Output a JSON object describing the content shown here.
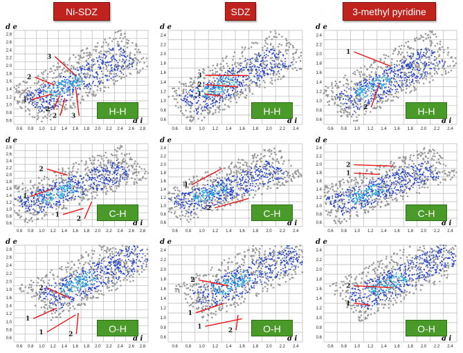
{
  "headers": [
    {
      "label": "Ni-SDZ"
    },
    {
      "label": "SDZ"
    },
    {
      "label": "3-methyl pyridine"
    }
  ],
  "axis_label": "d",
  "axis_label_y_suffix": "e",
  "axis_label_x_suffix": "i",
  "ticks": {
    "col0": {
      "y": [
        "2.8",
        "2.6",
        "2.4",
        "2.2",
        "2.0",
        "1.8",
        "1.6",
        "1.4",
        "1.2",
        "1.0",
        "0.8",
        "0.6"
      ],
      "x": [
        "0.6",
        "0.8",
        "1.0",
        "1.2",
        "1.4",
        "1.6",
        "1.8",
        "2.0",
        "2.2",
        "2.4",
        "2.6",
        "2.8"
      ]
    },
    "col1": {
      "y": [
        "2.4",
        "2.2",
        "2.0",
        "1.8",
        "1.6",
        "1.4",
        "1.2",
        "1.0",
        "0.8",
        "0.6"
      ],
      "x": [
        "0.6",
        "0.8",
        "1.0",
        "1.2",
        "1.4",
        "1.6",
        "1.8",
        "2.0",
        "2.2",
        "2.4"
      ]
    },
    "col2": {
      "y": [
        "2.4",
        "2.2",
        "2.0",
        "1.8",
        "1.6",
        "1.4",
        "1.2",
        "1.0",
        "0.8",
        "0.6"
      ],
      "x": [
        "0.6",
        "0.8",
        "1.0",
        "1.2",
        "1.4",
        "1.6",
        "1.8",
        "2.0",
        "2.2",
        "2.4"
      ]
    }
  },
  "panels": [
    {
      "row": 0,
      "col": 0,
      "contact": "H-H",
      "markers": [
        "3",
        "2",
        "1",
        "2",
        "2",
        "3"
      ]
    },
    {
      "row": 0,
      "col": 1,
      "contact": "H-H",
      "markers": [
        "3",
        "2",
        "1"
      ]
    },
    {
      "row": 0,
      "col": 2,
      "contact": "H-H",
      "markers": [
        "1",
        "2"
      ]
    },
    {
      "row": 1,
      "col": 0,
      "contact": "C-H",
      "markers": [
        "2",
        "1",
        "1",
        "2"
      ]
    },
    {
      "row": 1,
      "col": 1,
      "contact": "C-H",
      "markers": [
        "1",
        "2"
      ]
    },
    {
      "row": 1,
      "col": 2,
      "contact": "C-H",
      "markers": [
        "2",
        "1"
      ]
    },
    {
      "row": 2,
      "col": 0,
      "contact": "O-H",
      "markers": [
        "2",
        "1",
        "1",
        "2"
      ]
    },
    {
      "row": 2,
      "col": 1,
      "contact": "O-H",
      "markers": [
        "2",
        "1",
        "1",
        "2"
      ]
    },
    {
      "row": 2,
      "col": 2,
      "contact": "O-H",
      "markers": [
        "2",
        "1"
      ]
    }
  ]
}
